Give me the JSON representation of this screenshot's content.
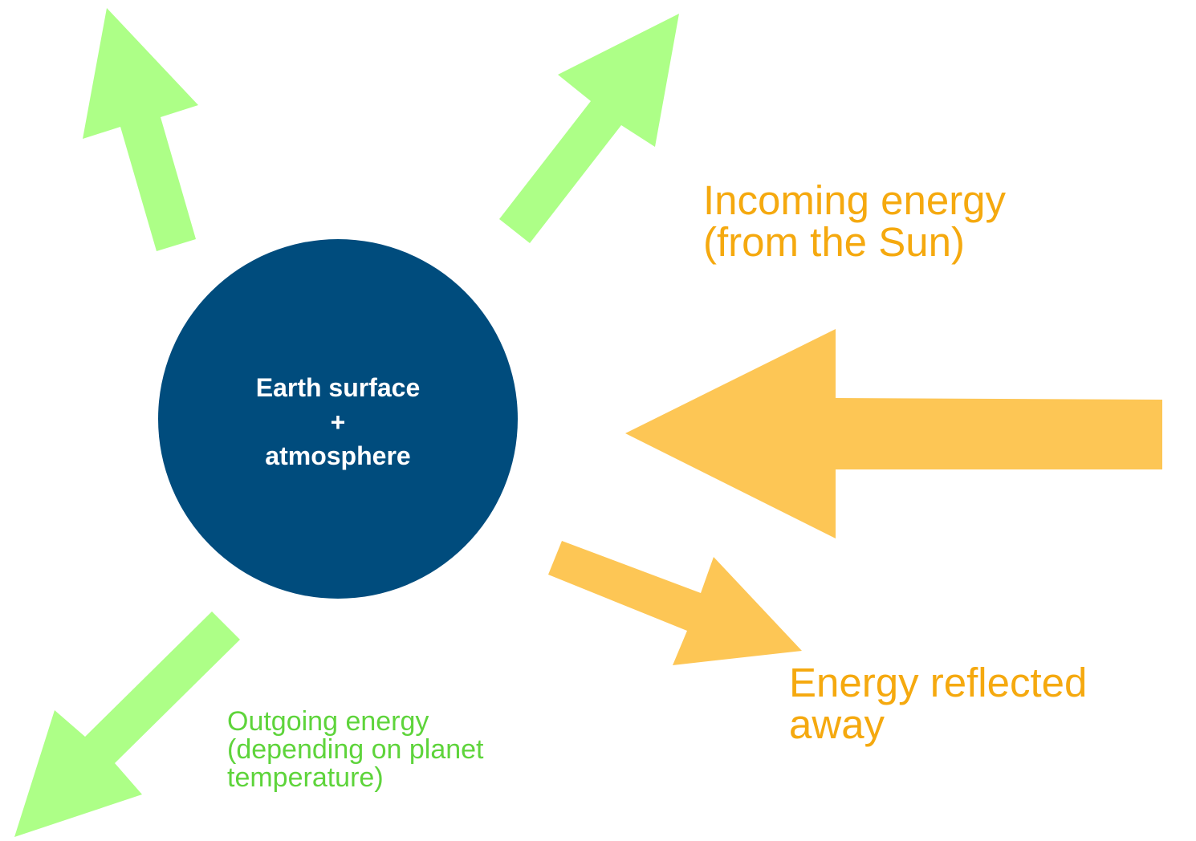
{
  "diagram": {
    "center_node": {
      "lines": [
        "Earth surface",
        "+",
        "atmosphere"
      ],
      "color": "#004c7d",
      "text_color": "#ffffff"
    },
    "incoming": {
      "lines": [
        "Incoming energy",
        "(from the Sun)"
      ],
      "color": "#f5a90f",
      "arrow_color": "#fdc655"
    },
    "reflected": {
      "lines": [
        "Energy reflected",
        "away"
      ],
      "color": "#f5a90f",
      "arrow_color": "#fdc655"
    },
    "outgoing": {
      "lines": [
        "Outgoing energy",
        "(depending on planet",
        "temperature)"
      ],
      "color": "#5ed43b",
      "arrow_color": "#adff87"
    }
  }
}
